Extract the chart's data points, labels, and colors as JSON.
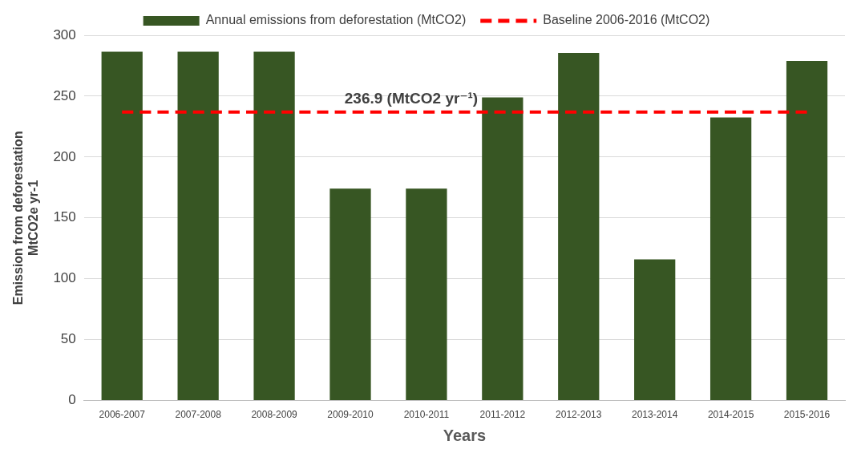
{
  "chart_data": {
    "type": "bar",
    "xlabel": "Years",
    "ylabel": "Emission from deforestation\nMtCO2e yr-1",
    "categories": [
      "2006-2007",
      "2007-2008",
      "2008-2009",
      "2009-2010",
      "2010-2011",
      "2011-2012",
      "2012-2013",
      "2013-2014",
      "2014-2015",
      "2015-2016"
    ],
    "series": [
      {
        "name": "Annual emissions from deforestation (MtCO2)",
        "color": "#375623",
        "values": [
          286.5,
          286.5,
          286.5,
          174,
          174,
          249,
          285.5,
          116,
          232.5,
          279
        ]
      },
      {
        "type": "line",
        "name": "Baseline 2006-2016 (MtCO2)",
        "color": "#ff0000",
        "line_style": "dashed",
        "marker": "none",
        "values": [
          236.9,
          236.9,
          236.9,
          236.9,
          236.9,
          236.9,
          236.9,
          236.9,
          236.9,
          236.9
        ]
      }
    ],
    "ylim": [
      0,
      300
    ],
    "yticks": [
      0,
      50,
      100,
      150,
      200,
      250,
      300
    ],
    "grid": "y",
    "legend": "top",
    "annotations": [
      {
        "text": "236.9 (MtCO2 yr⁻¹)",
        "y": 236.9
      }
    ]
  }
}
